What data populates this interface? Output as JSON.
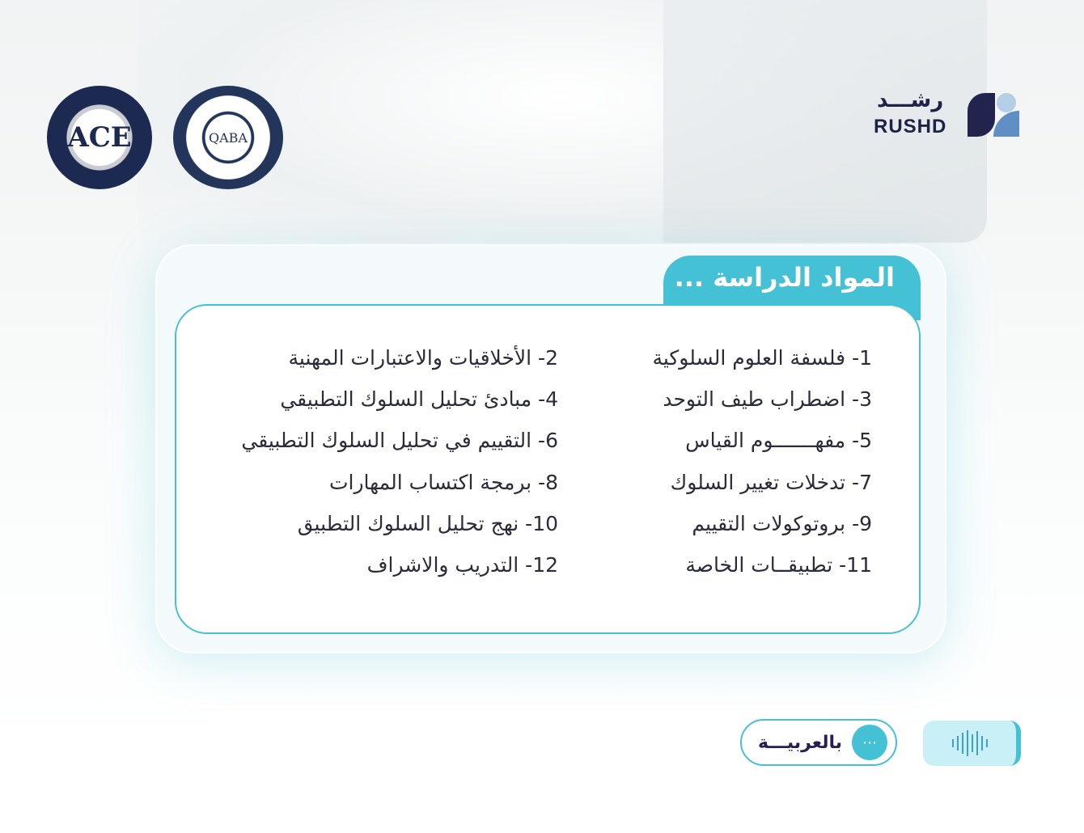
{
  "badges": {
    "ace": "ACE",
    "qaba": "QABA"
  },
  "brand": {
    "arabic": "رشـــد",
    "english": "RUSHD"
  },
  "section_title": "المواد الدراسة ...",
  "subjects_right": [
    "1- فلسفة العلوم السلوكية",
    "3- اضطراب طيف التوحد",
    "5- مفهـــــــوم القياس",
    "7- تدخلات تغيير السلوك",
    "9- بروتوكولات التقييم",
    "11- تطبيقــات الخاصة"
  ],
  "subjects_left": [
    "2- الأخلاقيات والاعتبارات المهنية",
    "4- مبادئ تحليل السلوك التطبيقي",
    "6- التقييم في تحليل السلوك التطبيقي",
    "8- برمجة اكتساب المهارات",
    "10- نهج تحليل السلوك التطبيق",
    "12- التدريب والاشراف"
  ],
  "language_button": "بالعربيـــة",
  "colors": {
    "accent": "#45c1d6",
    "navy": "#1f2147"
  }
}
